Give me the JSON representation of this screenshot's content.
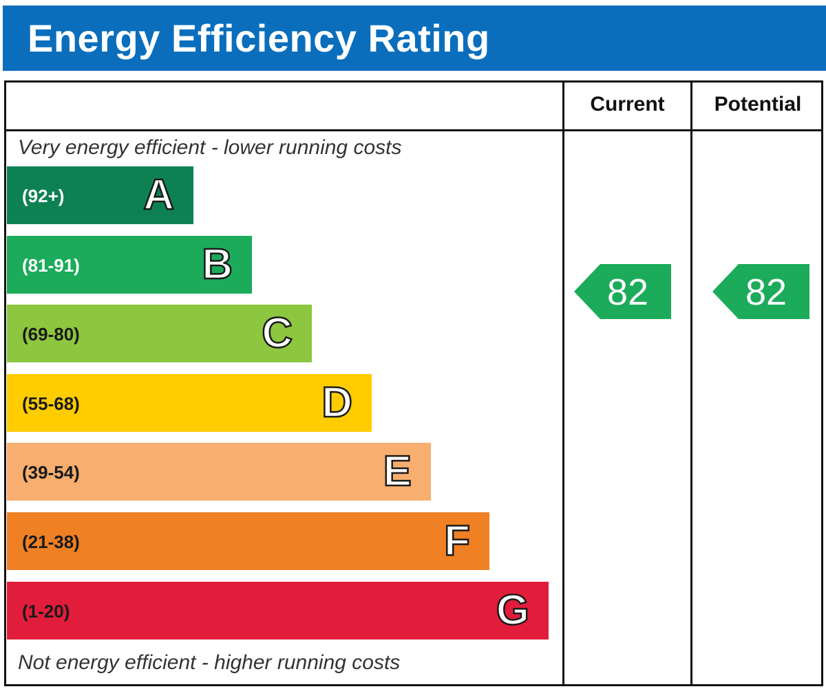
{
  "title": "Energy Efficiency Rating",
  "columns": {
    "current": "Current",
    "potential": "Potential"
  },
  "top_caption": "Very energy efficient - lower running costs",
  "bottom_caption": "Not energy efficient - higher running costs",
  "chart_data": {
    "type": "bar",
    "categories": [
      "A",
      "B",
      "C",
      "D",
      "E",
      "F",
      "G"
    ],
    "ranges": [
      "(92+)",
      "(81-91)",
      "(69-80)",
      "(55-68)",
      "(39-54)",
      "(21-38)",
      "(1-20)"
    ],
    "colors": [
      "#0e8153",
      "#1bab5a",
      "#8dc63f",
      "#ffcc00",
      "#f7ae6e",
      "#ef8023",
      "#e11d3b"
    ],
    "current": 82,
    "potential": 82,
    "rating_color": "#1bab5a"
  }
}
